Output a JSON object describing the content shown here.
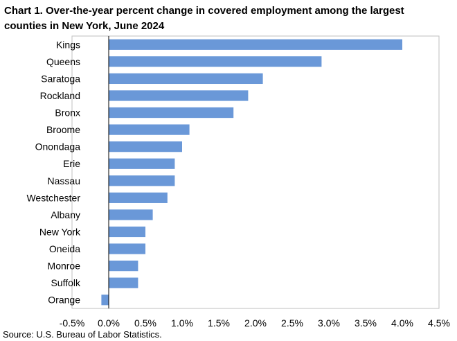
{
  "title": "Chart 1. Over-the-year percent change in covered employment among the largest counties in New York, June 2024",
  "source": "Source: U.S. Bureau of Labor Statistics.",
  "bar_color": "#6a98d8",
  "chart_data": {
    "type": "bar",
    "orientation": "horizontal",
    "title": "Chart 1. Over-the-year percent change in covered employment among the largest counties in New York, June 2024",
    "xlabel": "",
    "ylabel": "",
    "categories": [
      "Kings",
      "Queens",
      "Saratoga",
      "Rockland",
      "Bronx",
      "Broome",
      "Onondaga",
      "Erie",
      "Nassau",
      "Westchester",
      "Albany",
      "New York",
      "Oneida",
      "Monroe",
      "Suffolk",
      "Orange"
    ],
    "values": [
      4.0,
      2.9,
      2.1,
      1.9,
      1.7,
      1.1,
      1.0,
      0.9,
      0.9,
      0.8,
      0.6,
      0.5,
      0.5,
      0.4,
      0.4,
      -0.1
    ],
    "xlim": [
      -0.5,
      4.5
    ],
    "x_ticks": [
      "-0.5%",
      "0.0%",
      "0.5%",
      "1.0%",
      "1.5%",
      "2.0%",
      "2.5%",
      "3.0%",
      "3.5%",
      "4.0%",
      "4.5%"
    ],
    "grid": false,
    "legend": "none"
  }
}
